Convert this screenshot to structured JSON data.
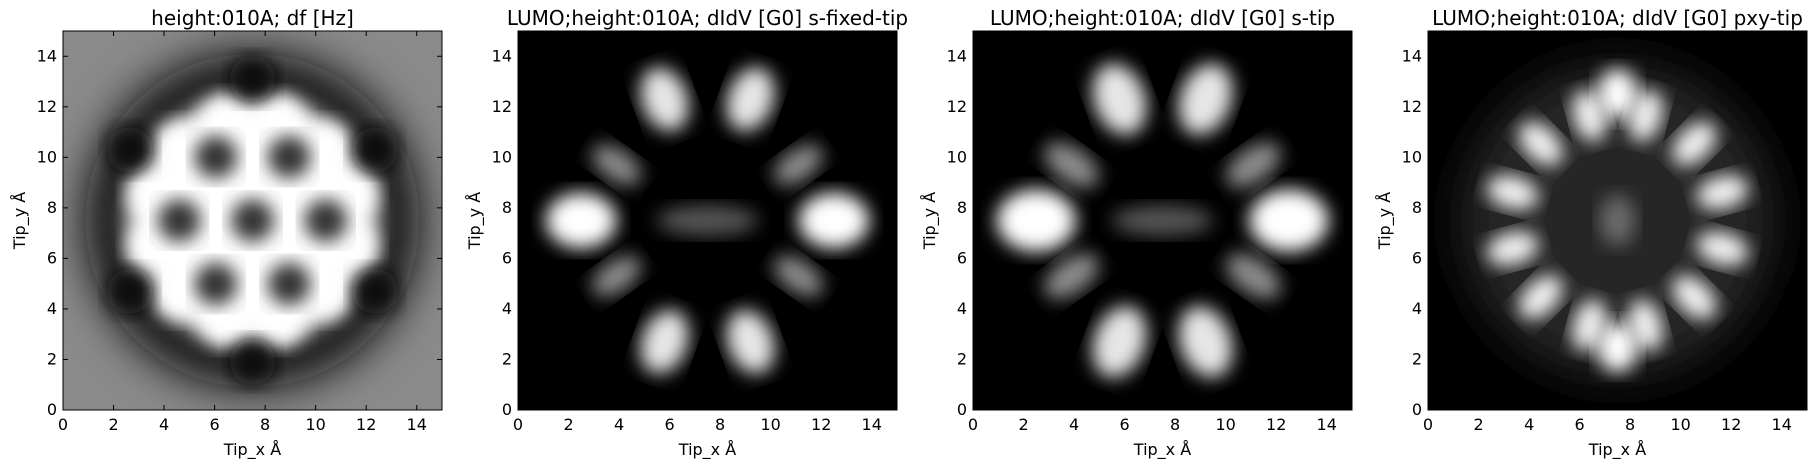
{
  "chart_data": [
    {
      "type": "heatmap",
      "title": "height:010A; df [Hz]",
      "xlabel": "Tip_x Å",
      "ylabel": "Tip_y Å",
      "xlim": [
        0,
        15
      ],
      "ylim": [
        0,
        15
      ],
      "xticks": [
        "0",
        "2",
        "4",
        "6",
        "8",
        "10",
        "12",
        "14"
      ],
      "yticks": [
        "0",
        "2",
        "4",
        "6",
        "8",
        "10",
        "12",
        "14"
      ],
      "colormap": "gray",
      "background": "#8a8a8a",
      "pattern": "coronene df map: bright hexagonal ring of lobes with seven dark centers, surrounded by a dark ring on a gray background"
    },
    {
      "type": "heatmap",
      "title": "LUMO;height:010A; dIdV [G0] s-fixed-tip",
      "xlabel": "Tip_x Å",
      "ylabel": "Tip_y Å",
      "xlim": [
        0,
        15
      ],
      "ylim": [
        0,
        15
      ],
      "xticks": [
        "0",
        "2",
        "4",
        "6",
        "8",
        "10",
        "12",
        "14"
      ],
      "yticks": [
        "0",
        "2",
        "4",
        "6",
        "8",
        "10",
        "12",
        "14"
      ],
      "colormap": "gray",
      "background": "#000000",
      "pattern": "LUMO s-fixed-tip: bright lobes at left/right, dimmer lobes at diagonals"
    },
    {
      "type": "heatmap",
      "title": "LUMO;height:010A; dIdV [G0] s-tip",
      "xlabel": "Tip_x Å",
      "ylabel": "Tip_y Å",
      "xlim": [
        0,
        15
      ],
      "ylim": [
        0,
        15
      ],
      "xticks": [
        "0",
        "2",
        "4",
        "6",
        "8",
        "10",
        "12",
        "14"
      ],
      "yticks": [
        "0",
        "2",
        "4",
        "6",
        "8",
        "10",
        "12",
        "14"
      ],
      "colormap": "gray",
      "background": "#000000",
      "pattern": "LUMO s-tip: similar to s-fixed-tip, slightly broader lobes"
    },
    {
      "type": "heatmap",
      "title": "LUMO;height:010A; dIdV [G0] pxy-tip",
      "xlabel": "Tip_x Å",
      "ylabel": "Tip_y Å",
      "xlim": [
        0,
        15
      ],
      "ylim": [
        0,
        15
      ],
      "xticks": [
        "0",
        "2",
        "4",
        "6",
        "8",
        "10",
        "12",
        "14"
      ],
      "yticks": [
        "0",
        "2",
        "4",
        "6",
        "8",
        "10",
        "12",
        "14"
      ],
      "colormap": "gray",
      "background": "#000000",
      "pattern": "LUMO pxy-tip: ring of twelve bright lobes with a faint center"
    }
  ]
}
